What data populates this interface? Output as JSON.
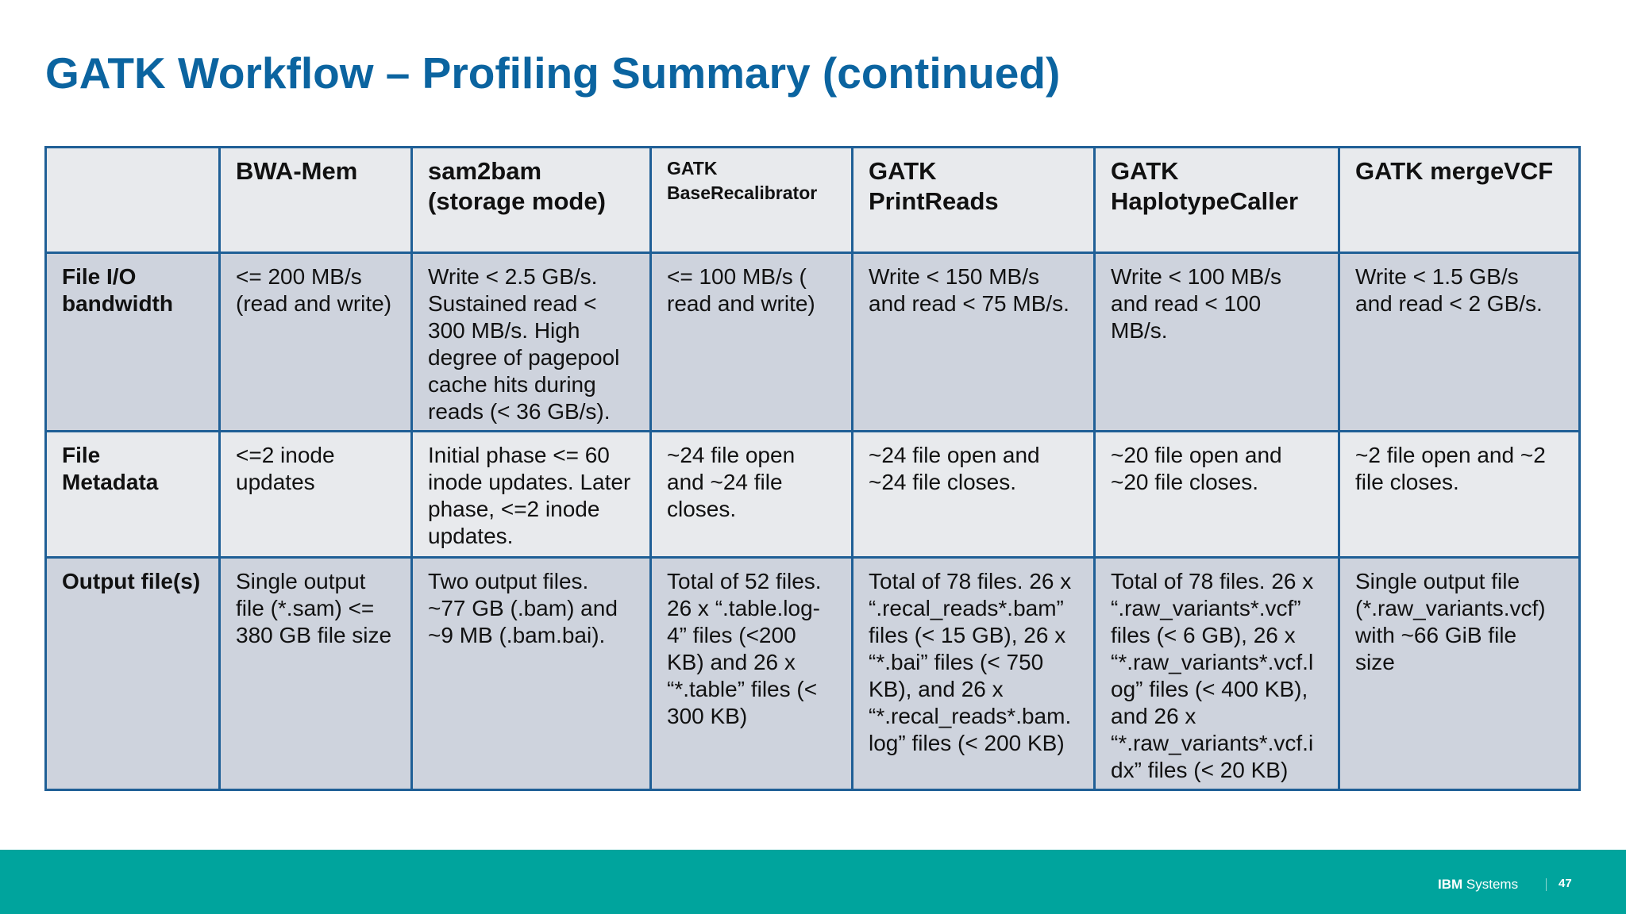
{
  "title": "GATK Workflow – Profiling Summary (continued)",
  "table": {
    "columns": [
      "",
      "BWA-Mem",
      "sam2bam\n (storage mode)",
      "GATK\nBaseRecalibrator",
      "GATK\nPrintReads",
      "GATK\nHaplotypeCaller",
      "GATK mergeVCF"
    ],
    "rows": [
      {
        "label": "File I/O\nbandwidth",
        "cells": [
          "<= 200 MB/s\n(read and write)",
          "Write < 2.5 GB/s.\nSustained read <\n300 MB/s. High\ndegree of pagepool\ncache hits during\nreads (< 36 GB/s).",
          "<= 100 MB/s (\nread and write)",
          "Write < 150 MB/s\nand read < 75 MB/s.",
          "Write < 100 MB/s\nand read < 100\nMB/s.",
          "Write < 1.5 GB/s\nand read < 2 GB/s."
        ]
      },
      {
        "label": "File\nMetadata",
        "cells": [
          "<=2 inode\nupdates",
          "Initial phase <= 60\ninode updates. Later\nphase, <=2 inode\nupdates.",
          "~24 file open\nand ~24 file\ncloses.",
          "~24 file open and\n~24 file closes.",
          "~20 file open and\n~20 file closes.",
          "~2 file open and ~2\nfile closes."
        ]
      },
      {
        "label": "Output file(s)",
        "cells": [
          "Single output\nfile (*.sam) <=\n380 GB file size",
          "Two output files.\n~77 GB (.bam) and\n~9 MB (.bam.bai).",
          "Total of 52 files.\n26 x “.table.log-\n4” files (<200\nKB) and 26 x\n“*.table” files (<\n300 KB)",
          "Total of 78 files. 26 x\n“.recal_reads*.bam”\nfiles (< 15 GB), 26 x\n“*.bai” files (< 750\nKB),  and 26 x\n“*.recal_reads*.bam.\nlog” files (< 200 KB)",
          "Total of 78 files. 26 x\n“.raw_variants*.vcf”\nfiles (< 6 GB), 26 x\n“*.raw_variants*.vcf.l\nog” files (< 400 KB),\nand 26 x\n“*.raw_variants*.vcf.i\ndx” files (< 20 KB)",
          "Single output file\n(*.raw_variants.vcf)\nwith ~66 GiB file\nsize"
        ]
      }
    ]
  },
  "footer": {
    "brand_bold": "IBM",
    "brand_rest": " Systems",
    "page_number": "47",
    "band_color": "#00a49d"
  },
  "colors": {
    "title": "#0b64a0",
    "border": "#1f5f96",
    "shade_light": "#e8eaed",
    "shade_dark": "#ced3dd"
  }
}
